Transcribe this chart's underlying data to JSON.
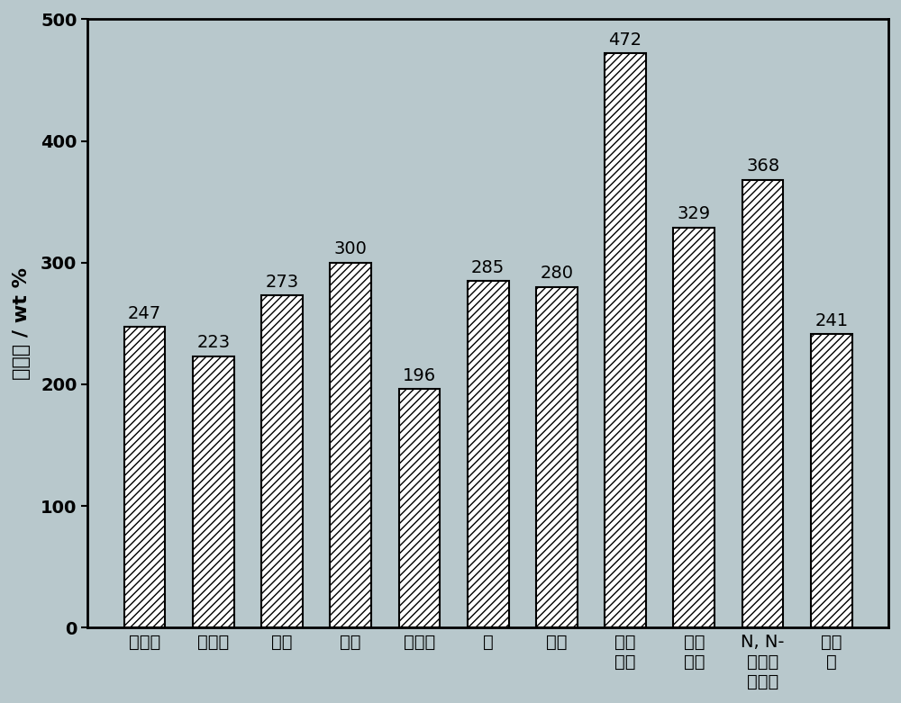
{
  "categories": [
    "正己烷",
    "正戊烷",
    "甲醇",
    "乙醇",
    "石油醚",
    "苯",
    "甲苯",
    "二氯\n甲烷",
    "甲基\n硅油",
    "N, N-\n二甲基\n甲酰胺",
    "植物\n油"
  ],
  "values": [
    247,
    223,
    273,
    300,
    196,
    285,
    280,
    472,
    329,
    368,
    241
  ],
  "ylabel": "吸附量 / wt %",
  "ylim": [
    0,
    500
  ],
  "yticks": [
    0,
    100,
    200,
    300,
    400,
    500
  ],
  "bar_facecolor": "#ffffff",
  "bar_edgecolor": "#000000",
  "hatch": "////",
  "background_color": "#b8c8cc",
  "plot_bg_color": "#b8c8cc",
  "value_fontsize": 14,
  "ylabel_fontsize": 16,
  "tick_fontsize": 14,
  "bar_width": 0.6
}
